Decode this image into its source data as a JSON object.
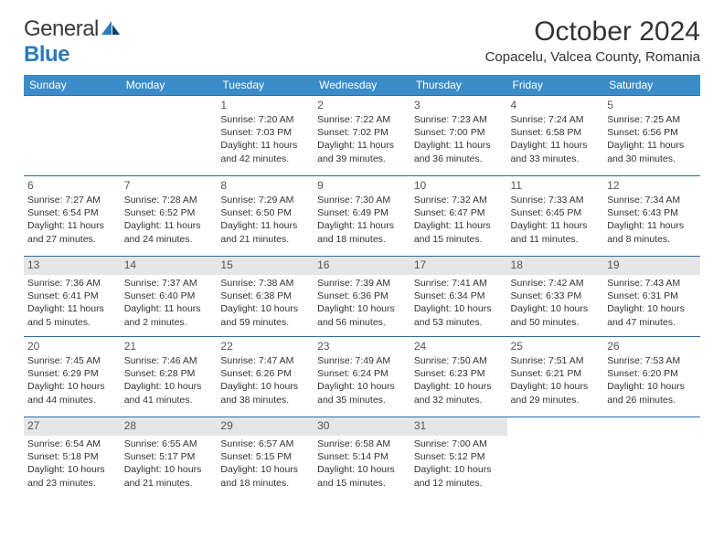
{
  "brand": {
    "part1": "General",
    "part2": "Blue"
  },
  "title": "October 2024",
  "location": "Copacelu, Valcea County, Romania",
  "colors": {
    "header_bg": "#3b8dc9",
    "header_text": "#ffffff",
    "row_border": "#2b6ca3",
    "shade_bg": "#e6e6e6",
    "text": "#333333"
  },
  "weekdays": [
    "Sunday",
    "Monday",
    "Tuesday",
    "Wednesday",
    "Thursday",
    "Friday",
    "Saturday"
  ],
  "weeks": [
    {
      "shaded": false,
      "days": [
        null,
        null,
        {
          "n": "1",
          "sr": "7:20 AM",
          "ss": "7:03 PM",
          "dl": "11 hours and 42 minutes."
        },
        {
          "n": "2",
          "sr": "7:22 AM",
          "ss": "7:02 PM",
          "dl": "11 hours and 39 minutes."
        },
        {
          "n": "3",
          "sr": "7:23 AM",
          "ss": "7:00 PM",
          "dl": "11 hours and 36 minutes."
        },
        {
          "n": "4",
          "sr": "7:24 AM",
          "ss": "6:58 PM",
          "dl": "11 hours and 33 minutes."
        },
        {
          "n": "5",
          "sr": "7:25 AM",
          "ss": "6:56 PM",
          "dl": "11 hours and 30 minutes."
        }
      ]
    },
    {
      "shaded": false,
      "days": [
        {
          "n": "6",
          "sr": "7:27 AM",
          "ss": "6:54 PM",
          "dl": "11 hours and 27 minutes."
        },
        {
          "n": "7",
          "sr": "7:28 AM",
          "ss": "6:52 PM",
          "dl": "11 hours and 24 minutes."
        },
        {
          "n": "8",
          "sr": "7:29 AM",
          "ss": "6:50 PM",
          "dl": "11 hours and 21 minutes."
        },
        {
          "n": "9",
          "sr": "7:30 AM",
          "ss": "6:49 PM",
          "dl": "11 hours and 18 minutes."
        },
        {
          "n": "10",
          "sr": "7:32 AM",
          "ss": "6:47 PM",
          "dl": "11 hours and 15 minutes."
        },
        {
          "n": "11",
          "sr": "7:33 AM",
          "ss": "6:45 PM",
          "dl": "11 hours and 11 minutes."
        },
        {
          "n": "12",
          "sr": "7:34 AM",
          "ss": "6:43 PM",
          "dl": "11 hours and 8 minutes."
        }
      ]
    },
    {
      "shaded": true,
      "days": [
        {
          "n": "13",
          "sr": "7:36 AM",
          "ss": "6:41 PM",
          "dl": "11 hours and 5 minutes."
        },
        {
          "n": "14",
          "sr": "7:37 AM",
          "ss": "6:40 PM",
          "dl": "11 hours and 2 minutes."
        },
        {
          "n": "15",
          "sr": "7:38 AM",
          "ss": "6:38 PM",
          "dl": "10 hours and 59 minutes."
        },
        {
          "n": "16",
          "sr": "7:39 AM",
          "ss": "6:36 PM",
          "dl": "10 hours and 56 minutes."
        },
        {
          "n": "17",
          "sr": "7:41 AM",
          "ss": "6:34 PM",
          "dl": "10 hours and 53 minutes."
        },
        {
          "n": "18",
          "sr": "7:42 AM",
          "ss": "6:33 PM",
          "dl": "10 hours and 50 minutes."
        },
        {
          "n": "19",
          "sr": "7:43 AM",
          "ss": "6:31 PM",
          "dl": "10 hours and 47 minutes."
        }
      ]
    },
    {
      "shaded": false,
      "days": [
        {
          "n": "20",
          "sr": "7:45 AM",
          "ss": "6:29 PM",
          "dl": "10 hours and 44 minutes."
        },
        {
          "n": "21",
          "sr": "7:46 AM",
          "ss": "6:28 PM",
          "dl": "10 hours and 41 minutes."
        },
        {
          "n": "22",
          "sr": "7:47 AM",
          "ss": "6:26 PM",
          "dl": "10 hours and 38 minutes."
        },
        {
          "n": "23",
          "sr": "7:49 AM",
          "ss": "6:24 PM",
          "dl": "10 hours and 35 minutes."
        },
        {
          "n": "24",
          "sr": "7:50 AM",
          "ss": "6:23 PM",
          "dl": "10 hours and 32 minutes."
        },
        {
          "n": "25",
          "sr": "7:51 AM",
          "ss": "6:21 PM",
          "dl": "10 hours and 29 minutes."
        },
        {
          "n": "26",
          "sr": "7:53 AM",
          "ss": "6:20 PM",
          "dl": "10 hours and 26 minutes."
        }
      ]
    },
    {
      "shaded": true,
      "days": [
        {
          "n": "27",
          "sr": "6:54 AM",
          "ss": "5:18 PM",
          "dl": "10 hours and 23 minutes."
        },
        {
          "n": "28",
          "sr": "6:55 AM",
          "ss": "5:17 PM",
          "dl": "10 hours and 21 minutes."
        },
        {
          "n": "29",
          "sr": "6:57 AM",
          "ss": "5:15 PM",
          "dl": "10 hours and 18 minutes."
        },
        {
          "n": "30",
          "sr": "6:58 AM",
          "ss": "5:14 PM",
          "dl": "10 hours and 15 minutes."
        },
        {
          "n": "31",
          "sr": "7:00 AM",
          "ss": "5:12 PM",
          "dl": "10 hours and 12 minutes."
        },
        null,
        null
      ]
    }
  ],
  "labels": {
    "sunrise": "Sunrise: ",
    "sunset": "Sunset: ",
    "daylight": "Daylight: "
  }
}
